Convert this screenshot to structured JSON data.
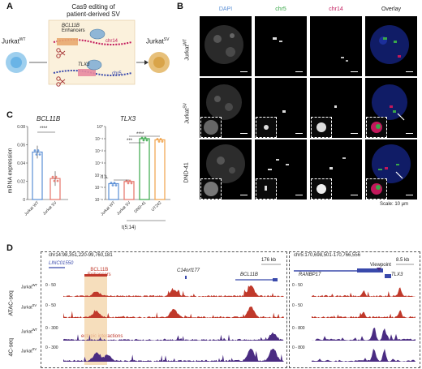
{
  "panel_a": {
    "label": "A",
    "title_line1": "Cas9 editing of",
    "title_line2": "patient-derived SV",
    "cell_wt": "Jurkat",
    "cell_wt_sup": "WT",
    "cell_sv": "Jurkat",
    "cell_sv_sup": "SV",
    "gene1": "BCL11B",
    "gene1_sub": "Enhancers",
    "gene2": "TLX3",
    "chr_a": "chr14",
    "chr_b": "chr5",
    "colors": {
      "chr14": "#c2185b",
      "chr5": "#3949ab",
      "cell_wt": "#9ecfee",
      "cell_sv": "#e7c07a"
    }
  },
  "panel_b": {
    "label": "B",
    "columns": [
      "DAPI",
      "chr5",
      "chr14",
      "Overlay"
    ],
    "rows": [
      {
        "name": "Jurkat",
        "sup": "WT"
      },
      {
        "name": "Jurkat",
        "sup": "SV"
      },
      {
        "name": "DND-41",
        "sup": ""
      }
    ],
    "scale_text": "Scale: 10 μm",
    "colors": {
      "dapi": "#5b8fd6",
      "chr5": "#3aa84a",
      "chr14": "#c2185b",
      "overlay": "#1c2f9a"
    }
  },
  "panel_c": {
    "label": "C",
    "ylabel": "mRNA expression",
    "group_label": "t(5;14)",
    "sig": "****",
    "sig_ns": "n.s.",
    "sig3": "***",
    "chart_data": [
      {
        "type": "bar",
        "title": "BCL11B",
        "categories": [
          "Jurkat WT",
          "Jurkat SV"
        ],
        "values": [
          0.052,
          0.023
        ],
        "errors": [
          0.007,
          0.008
        ],
        "ylim": [
          0,
          0.08
        ],
        "yticks": [
          0,
          0.02,
          0.04,
          0.06,
          0.08
        ],
        "colors": [
          "#5b8fd6",
          "#e57368"
        ]
      },
      {
        "type": "bar",
        "title": "TLX3",
        "scale": "log",
        "categories": [
          "Jurkat WT",
          "Jurkat SV",
          "DND-41",
          "UT242"
        ],
        "values": [
          2e-05,
          3e-05,
          0.1,
          0.08
        ],
        "ylim": [
          1e-06,
          1
        ],
        "yticks": [
          "10⁰",
          "10⁻¹",
          "10⁻²",
          "10⁻³",
          "10⁻⁴",
          "10⁻⁵",
          "10⁻⁶"
        ],
        "colors": [
          "#5b8fd6",
          "#e57368",
          "#3aa84a",
          "#f0a24a"
        ]
      }
    ]
  },
  "panel_d": {
    "label": "D",
    "left_coords": "chr14:98,351,220-99,760,181",
    "right_coords": "chr5:170,698,501-170,766,556",
    "left_scale": "176 kb",
    "right_scale": "8.5 kb",
    "genes_left": [
      "LINC01550",
      "C14orf177",
      "BCL11B"
    ],
    "enhancer_label_1": "BCL11B",
    "enhancer_label_2": "Enhancers",
    "gene_right": "RANBP17",
    "gene_right2": "TLX3",
    "viewpoint": "Viewpoint",
    "ectopic": "ectopic interactions",
    "assays": [
      "ATAC-seq",
      "4C-seq"
    ],
    "tracks": [
      {
        "sample": "Jurkat",
        "sup": "WT",
        "range_left": "0 - 50",
        "range_right": "0 - 50"
      },
      {
        "sample": "Jurkat",
        "sup": "SV",
        "range_left": "0 - 50",
        "range_right": "0 - 50"
      },
      {
        "sample": "Jurkat",
        "sup": "WT",
        "range_left": "0 - 300",
        "range_right": "0 - 800"
      },
      {
        "sample": "Jurkat",
        "sup": "SV",
        "range_left": "0 - 300",
        "range_right": "0 - 800"
      }
    ],
    "colors": {
      "atac": "#c0392b",
      "c4": "#4a2c82",
      "highlight": "#f3d3a6"
    }
  }
}
